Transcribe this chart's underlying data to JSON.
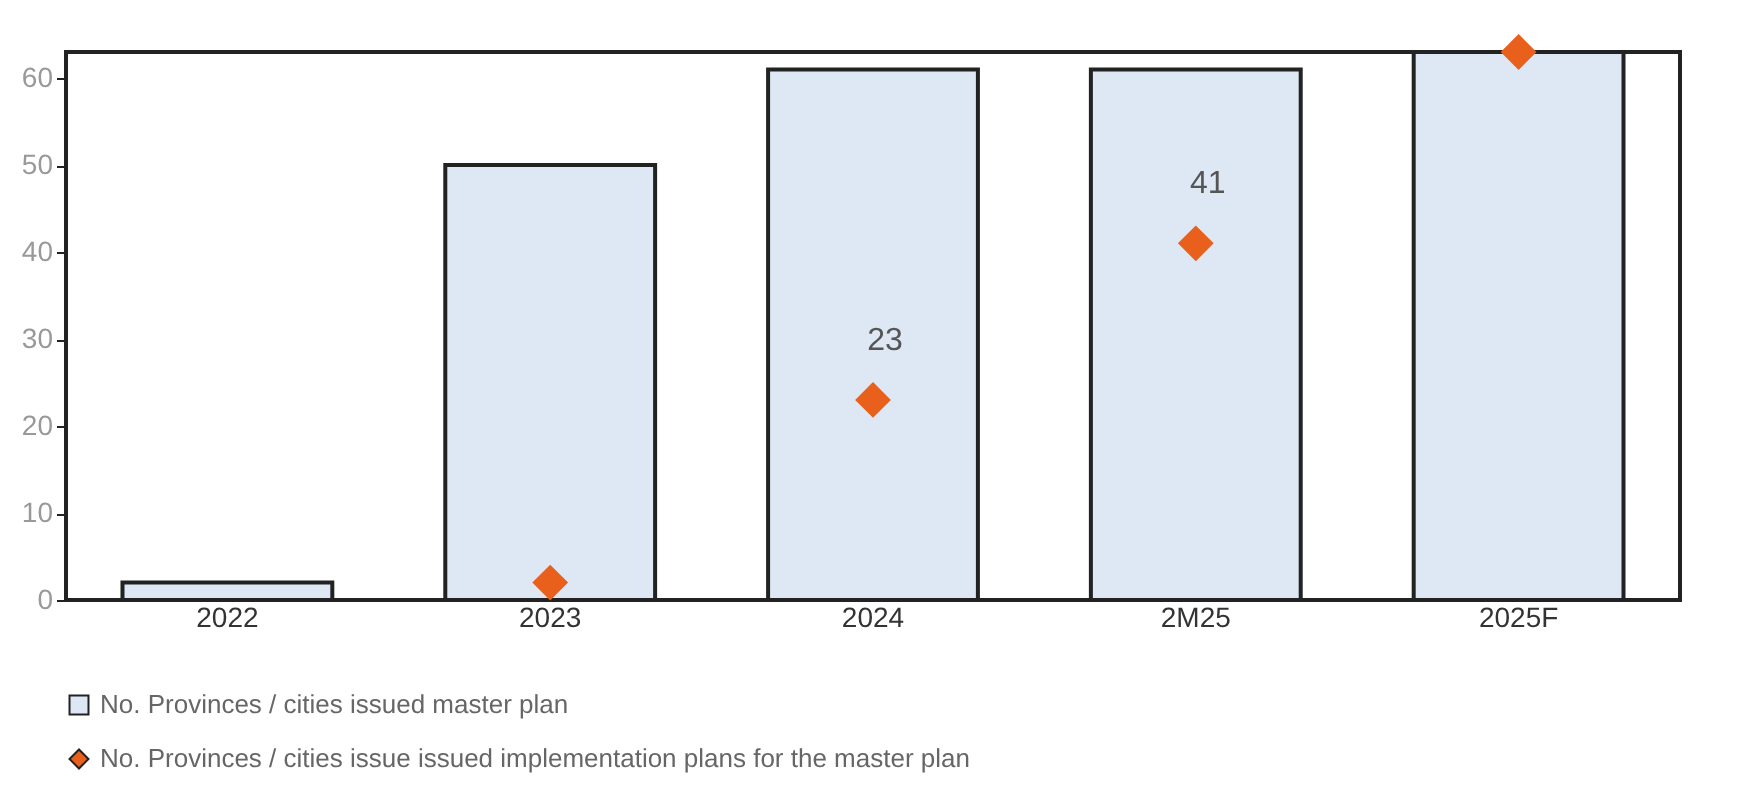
{
  "chart_data": {
    "type": "bar",
    "categories": [
      "2022",
      "2023",
      "2024",
      "2M25",
      "2025F"
    ],
    "series": [
      {
        "name": "No. Provinces / cities issued master plan",
        "color": "#dde8f4",
        "values": [
          2,
          50,
          61,
          61,
          63
        ]
      },
      {
        "name": "No. Provinces / cities issue issued implementation plans for the master plan",
        "type": "scatter",
        "color": "#e8601c",
        "values": [
          null,
          2,
          23,
          41,
          63
        ],
        "value_labels": [
          null,
          null,
          "23",
          "41",
          null
        ]
      }
    ],
    "marker": "diamond",
    "ylim": [
      0,
      63
    ],
    "yticks": [
      0,
      10,
      20,
      30,
      40,
      50,
      60
    ],
    "legend": "bottom"
  }
}
